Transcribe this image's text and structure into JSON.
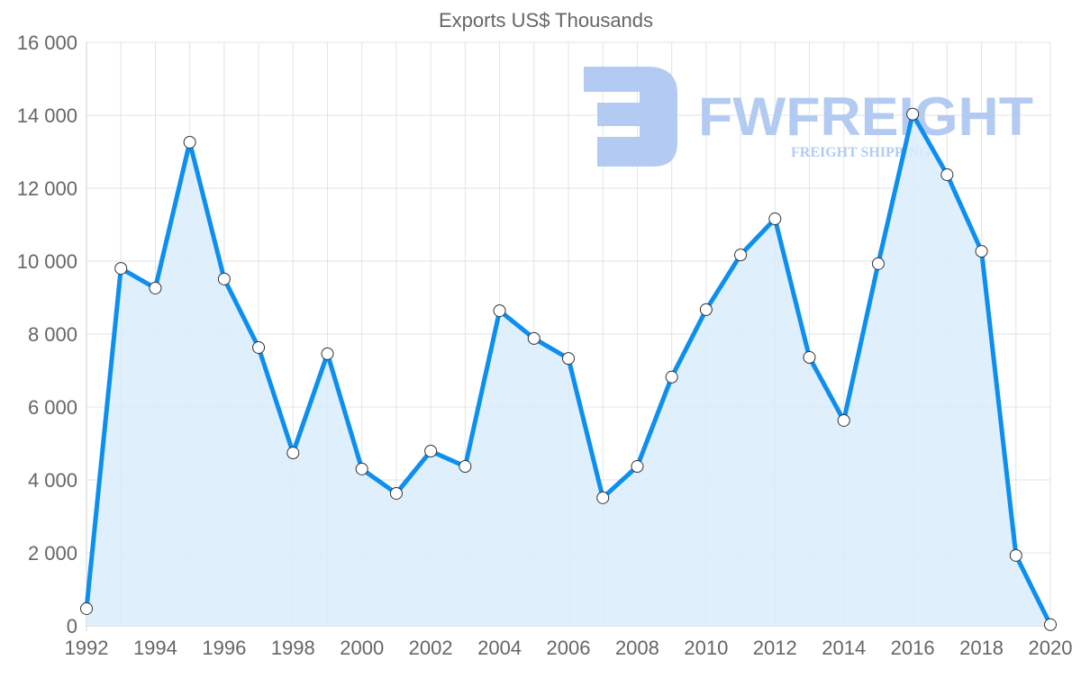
{
  "chart_data": {
    "type": "line",
    "title": "Exports US$ Thousands",
    "xlabel": "",
    "ylabel": "",
    "x": [
      1992,
      1993,
      1994,
      1995,
      1996,
      1997,
      1998,
      1999,
      2000,
      2001,
      2002,
      2003,
      2004,
      2005,
      2006,
      2007,
      2008,
      2009,
      2010,
      2011,
      2012,
      2013,
      2014,
      2015,
      2016,
      2017,
      2018,
      2019,
      2020
    ],
    "series": [
      {
        "name": "Exports US$ Thousands",
        "values": [
          470,
          9800,
          9260,
          13260,
          9510,
          7630,
          4740,
          7460,
          4300,
          3630,
          4790,
          4370,
          8640,
          7880,
          7330,
          3510,
          4370,
          6820,
          8670,
          10170,
          11160,
          7360,
          5630,
          9930,
          14030,
          12370,
          10270,
          1930,
          30
        ],
        "color": "#0d8ff0",
        "fill": "#d9ecfc"
      }
    ],
    "ylim": [
      0,
      16000
    ],
    "xlim": [
      1992,
      2020
    ],
    "yticks": [
      "0",
      "2 000",
      "4 000",
      "6 000",
      "8 000",
      "10 000",
      "12 000",
      "14 000",
      "16 000"
    ],
    "ytick_values": [
      0,
      2000,
      4000,
      6000,
      8000,
      10000,
      12000,
      14000,
      16000
    ],
    "xticks": [
      "1992",
      "1994",
      "1996",
      "1998",
      "2000",
      "2002",
      "2004",
      "2006",
      "2008",
      "2010",
      "2012",
      "2014",
      "2016",
      "2018",
      "2020"
    ],
    "grid": true,
    "legend": "none"
  },
  "watermark": {
    "brand": "FWFREIGHT",
    "tagline": "FREIGHT SHIPPING",
    "color": "#b3cbf2"
  }
}
